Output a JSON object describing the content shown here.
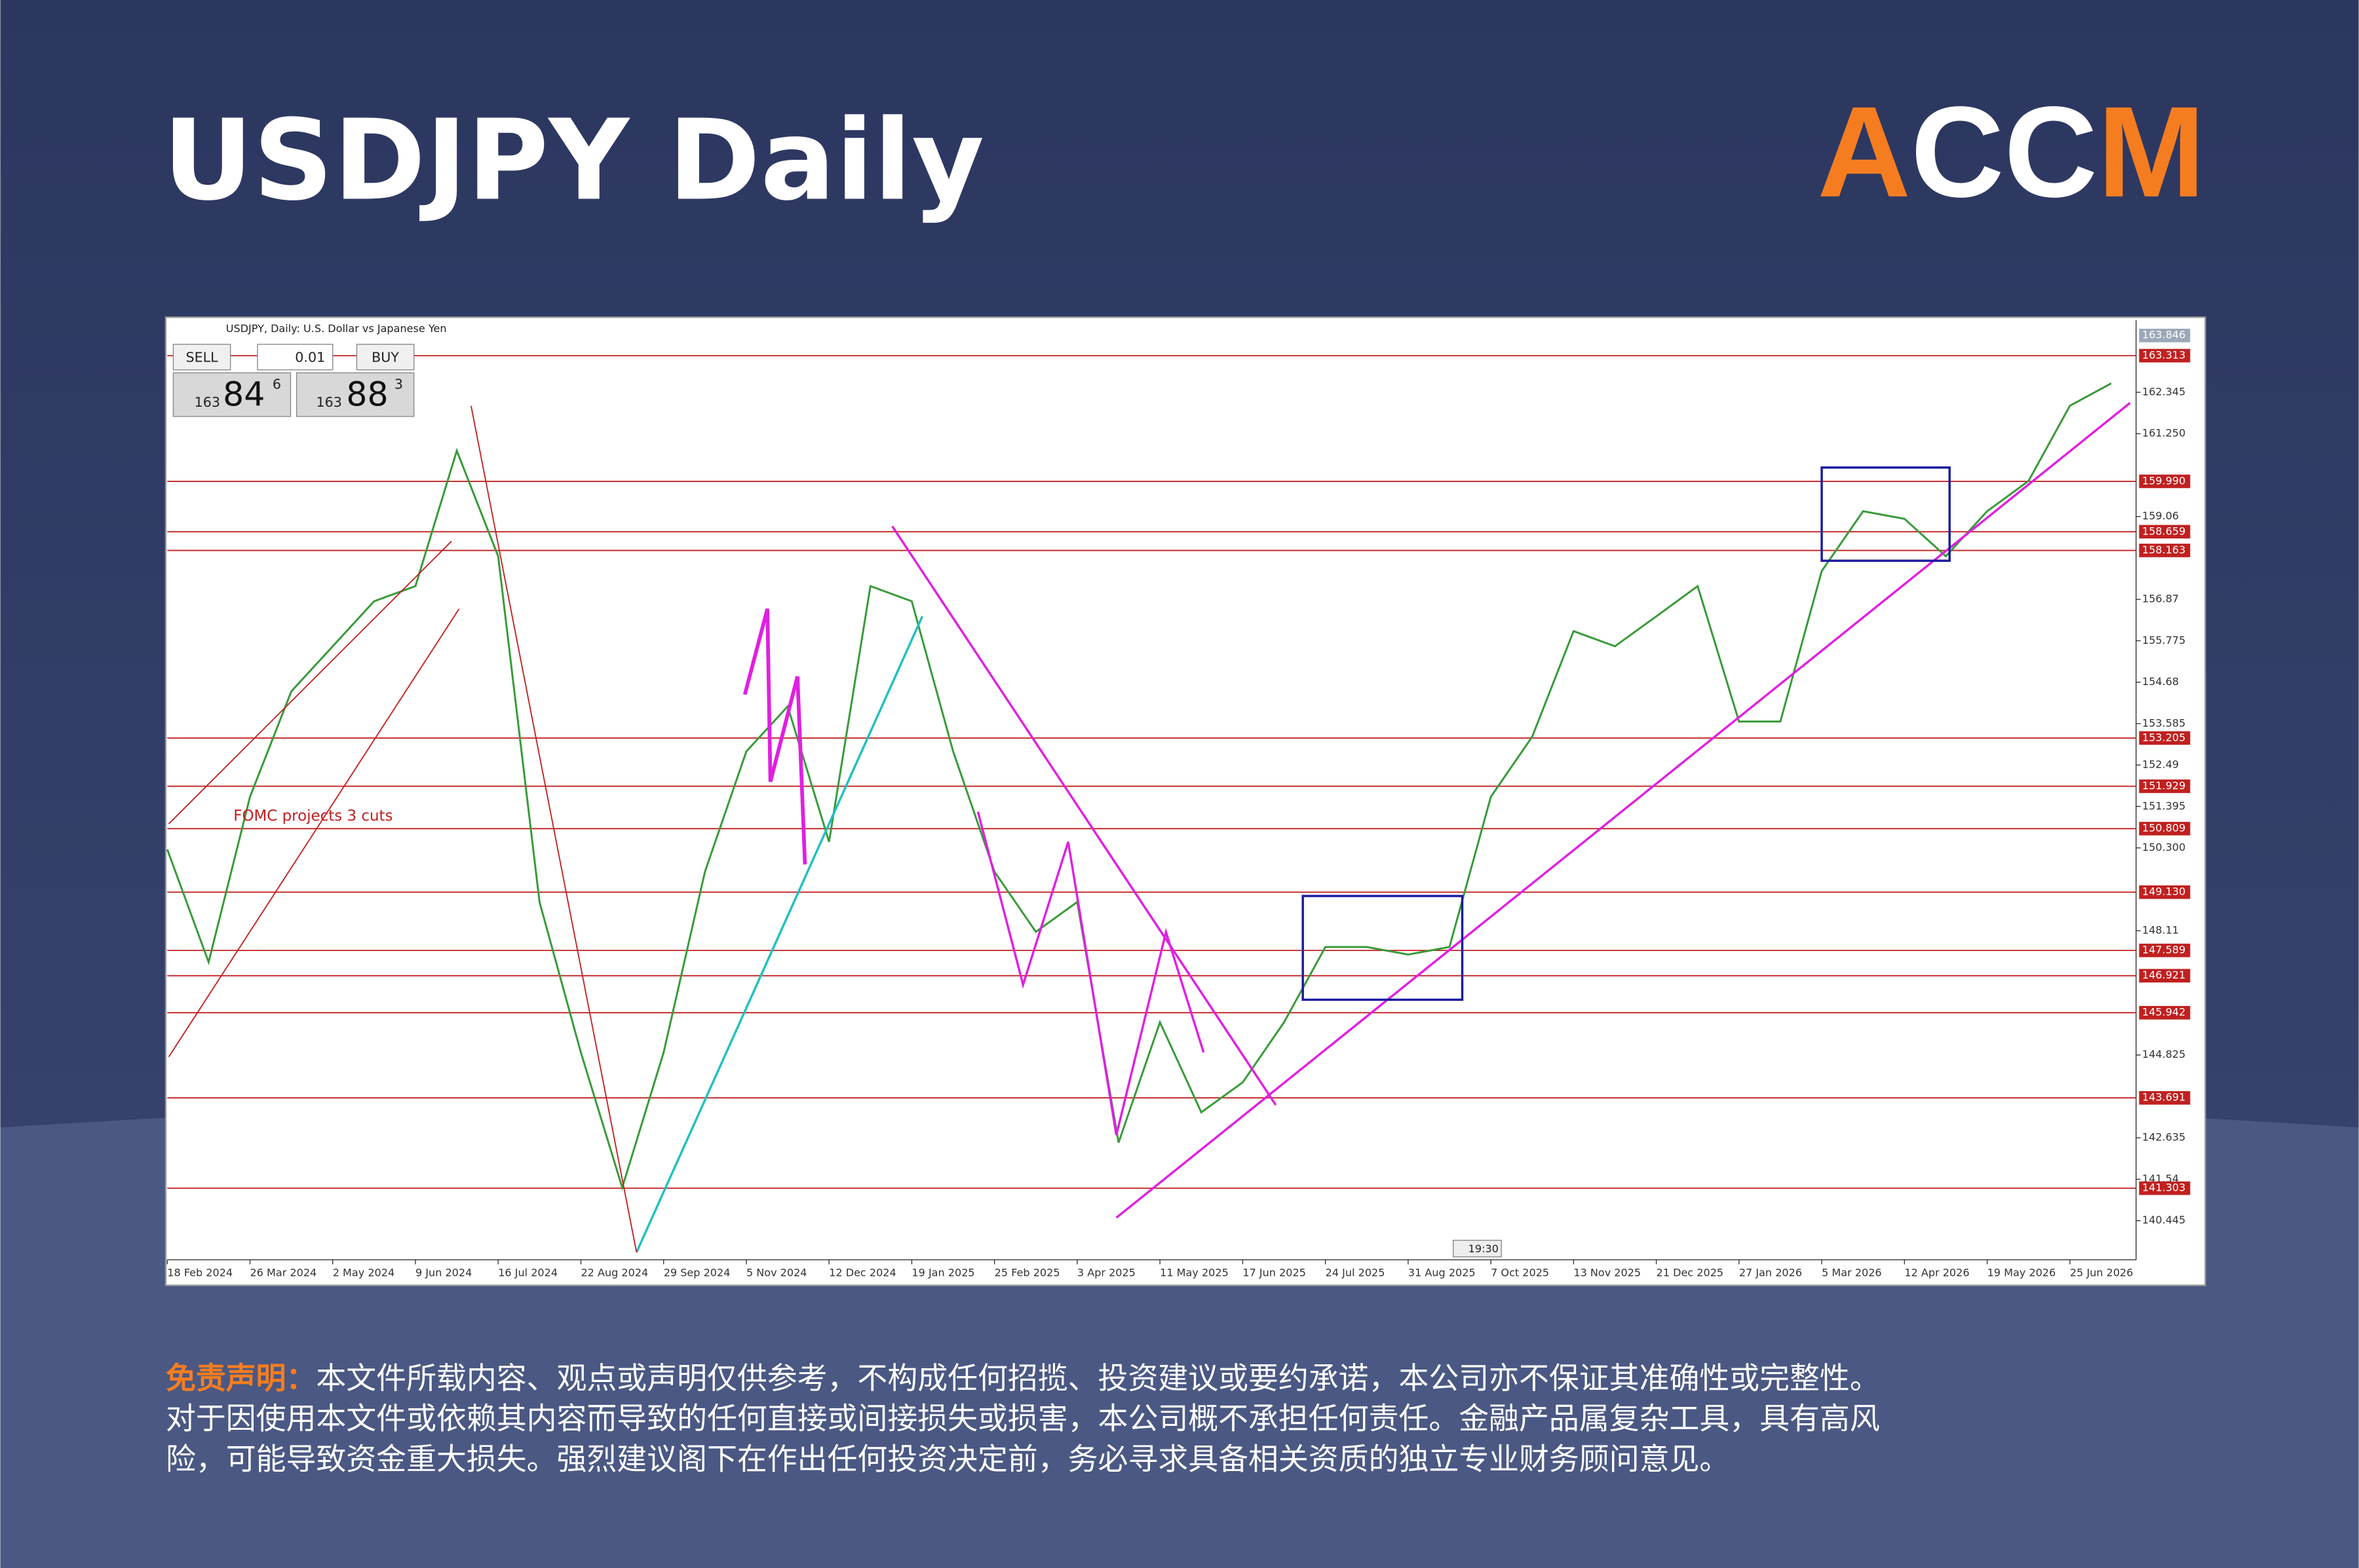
{
  "title": "USDJPY Daily",
  "logo": [
    "A",
    "CC",
    "M"
  ],
  "chart_data": {
    "type": "line",
    "header": "USDJPY, Daily:  U.S. Dollar vs Japanese Yen",
    "annotation": "FOMC projects 3 cuts",
    "clock": "19:30",
    "trade_panel": {
      "sell": "SELL",
      "lot": "0.01",
      "buy": "BUY",
      "bid": [
        "163",
        "84",
        "6"
      ],
      "ask": [
        "163",
        "88",
        "3"
      ]
    },
    "categories": [
      "18 Feb 2024",
      null,
      "26 Mar 2024",
      null,
      "2 May 2024",
      null,
      "9 Jun 2024",
      null,
      "16 Jul 2024",
      null,
      "22 Aug 2024",
      null,
      "29 Sep 2024",
      null,
      "5 Nov 2024",
      null,
      "12 Dec 2024",
      null,
      "19 Jan 2025",
      null,
      "25 Feb 2025",
      null,
      "3 Apr 2025",
      null,
      "11 May 2025",
      null,
      "17 Jun 2025",
      null,
      "24 Jul 2025",
      null,
      "31 Aug 2025",
      null,
      "7 Oct 2025",
      null,
      "13 Nov 2025",
      null,
      "21 Dec 2025",
      null,
      "27 Jan 2026",
      null,
      "5 Mar 2026",
      null,
      "12 Apr 2026",
      null,
      "19 May 2026",
      null,
      "25 Jun 2026",
      null
    ],
    "series": [
      {
        "name": "USDJPY",
        "color": "#3a9a3a",
        "values": [
          150.26,
          147.28,
          151.65,
          154.44,
          155.63,
          156.82,
          157.22,
          160.8,
          158.01,
          148.87,
          144.89,
          141.32,
          144.89,
          149.67,
          152.85,
          154.04,
          150.46,
          157.22,
          156.82,
          152.85,
          149.67,
          148.08,
          148.87,
          142.51,
          145.69,
          143.31,
          144.1,
          145.69,
          147.68,
          147.68,
          147.48,
          147.68,
          151.65,
          153.24,
          156.03,
          155.63,
          156.42,
          157.22,
          153.64,
          153.64,
          157.62,
          159.2,
          159.0,
          158.01,
          159.2,
          160.0,
          161.99,
          162.58
        ]
      }
    ],
    "ylim": [
      139.41,
      164.25
    ],
    "yticks": [
      162.345,
      {
        "value": 161.25,
        "label": "161.250"
      },
      159.06,
      156.87,
      155.775,
      154.68,
      153.585,
      152.49,
      151.395,
      {
        "value": 150.3,
        "label": "150.300"
      },
      148.11,
      144.825,
      142.635,
      141.54,
      140.445
    ],
    "levels": [
      163.313,
      {
        "value": 159.99,
        "label": "159.990"
      },
      158.659,
      158.163,
      153.205,
      151.929,
      150.809,
      {
        "value": 149.13,
        "label": "149.130"
      },
      147.589,
      146.921,
      145.942,
      143.691,
      141.303
    ],
    "last_price": 163.846,
    "grid": false
  },
  "disclaimer": {
    "label": "免责声明：",
    "lines": [
      "本文件所载内容、观点或声明仅供参考，不构成任何招揽、投资建议或要约承诺，本公司亦不保证其准确性或完整性。",
      "对于因使用本文件或依赖其内容而导致的任何直接或间接损失或损害，本公司概不承担任何责任。金融产品属复杂工具，具有高风",
      "险，可能导致资金重大损失。强烈建议阁下在作出任何投资决定前，务必寻求具备相关资质的独立专业财务顾问意见。"
    ]
  }
}
